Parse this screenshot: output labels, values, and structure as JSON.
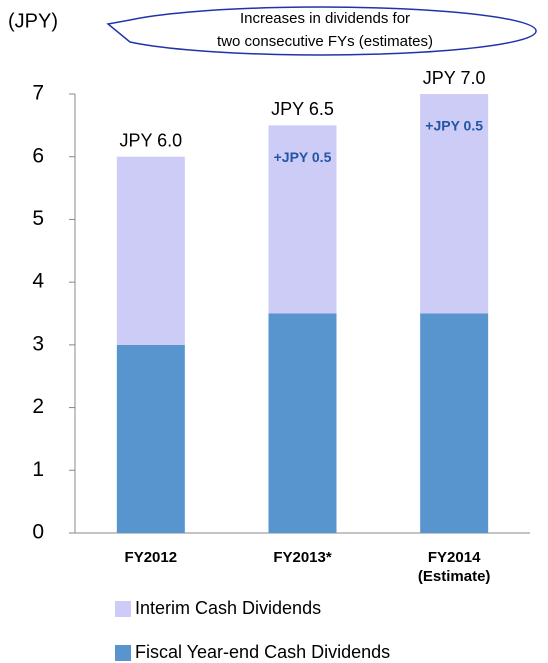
{
  "chart_data": {
    "type": "stacked_bar",
    "y_label": "(JPY)",
    "callout": [
      "Increases in dividends for",
      "two consecutive FYs (estimates)"
    ],
    "categories": [
      "FY2012",
      "FY2013*",
      "FY2014\n(Estimate)"
    ],
    "series": [
      {
        "name": "Interim Cash Dividends",
        "color": "#ccccf6",
        "values": [
          3,
          3,
          3.5
        ]
      },
      {
        "name": "Fiscal Year-end Cash Dividends",
        "color": "#5895cf",
        "values": [
          3,
          3.5,
          3.5
        ]
      }
    ],
    "total_labels": [
      "JPY 6.0",
      "JPY 6.5",
      "JPY 7.0"
    ],
    "increase_labels": [
      null,
      "+JPY 0.5",
      "+JPY 0.5"
    ],
    "ylim": [
      0,
      7
    ],
    "yticks": [
      0,
      1,
      2,
      3,
      4,
      5,
      6,
      7
    ]
  }
}
